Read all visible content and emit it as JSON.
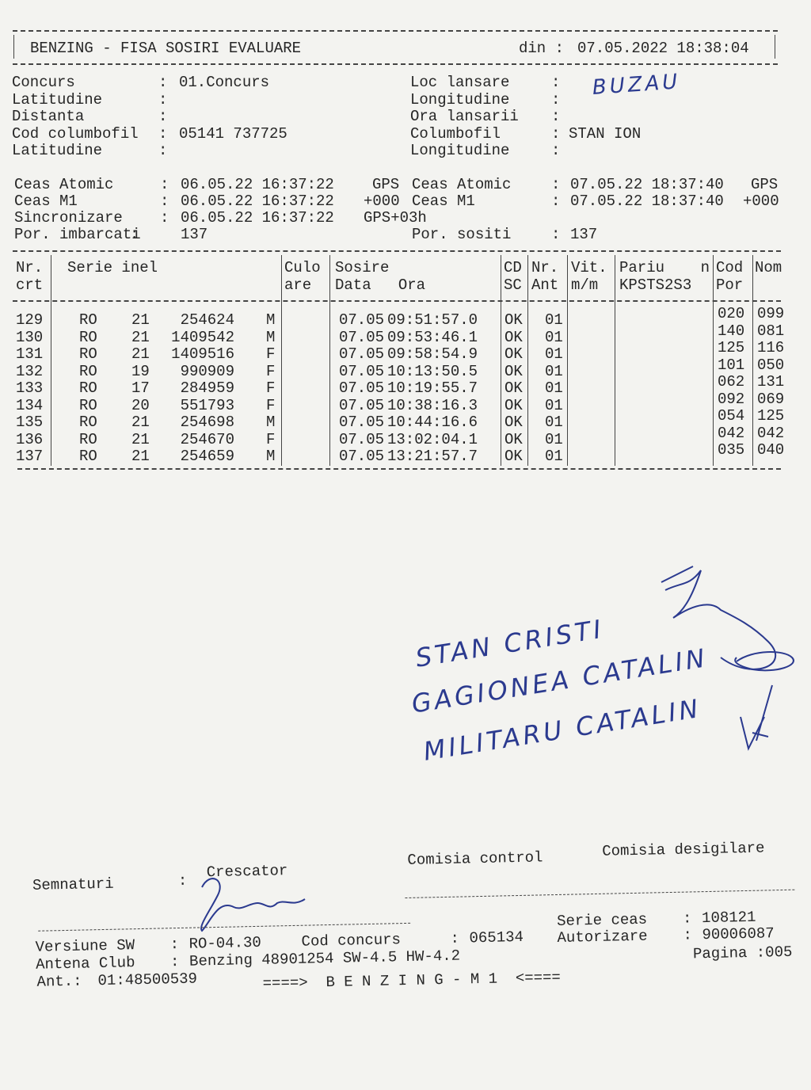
{
  "header": {
    "title": "BENZING - FISA SOSIRI EVALUARE",
    "date_label": "din :",
    "date": "07.05.2022 18:38:04"
  },
  "separator": ":",
  "info": {
    "left": [
      {
        "label": "Concurs",
        "value": "01.Concurs"
      },
      {
        "label": "Latitudine"
      },
      {
        "label": "Distanta"
      },
      {
        "label": "Cod columbofil",
        "value": "05141 737725"
      },
      {
        "label": "Latitudine"
      }
    ],
    "right": [
      {
        "label": "Loc lansare",
        "value": "BUZAU"
      },
      {
        "label": "Longitudine"
      },
      {
        "label": "Ora lansarii"
      },
      {
        "label": "Columbofil",
        "value": "STAN ION"
      },
      {
        "label": "Longitudine"
      }
    ]
  },
  "clocks": {
    "left": [
      {
        "label": "Ceas Atomic",
        "value": "06.05.22 16:37:22",
        "suffix": "GPS"
      },
      {
        "label": "Ceas M1",
        "value": "06.05.22 16:37:22",
        "suffix": "+000"
      },
      {
        "label": "Sincronizare",
        "value": "06.05.22 16:37:22",
        "suffix": "GPS+03h"
      },
      {
        "label": "Por. imbarcati",
        "value": "137"
      }
    ],
    "right": [
      {
        "label": "Ceas Atomic",
        "value": "07.05.22 18:37:40",
        "suffix": "GPS"
      },
      {
        "label": "Ceas M1",
        "value": "07.05.22 18:37:40",
        "suffix": "+000"
      },
      {
        "label": "Por. sositi",
        "value": "137"
      }
    ]
  },
  "table": {
    "columns": [
      [
        "Nr.",
        "crt"
      ],
      [
        "Serie inel"
      ],
      [
        "Culo",
        "are"
      ],
      [
        "Sosire",
        "Data   Ora"
      ],
      [
        "CD",
        "SC"
      ],
      [
        "Nr.",
        "Ant"
      ],
      [
        "Vit.",
        "m/m"
      ],
      [
        "Pariu    n",
        "KPSTS2S3"
      ],
      [
        "Cod",
        "Por"
      ],
      [
        "Nom"
      ]
    ],
    "rows": [
      [
        "129",
        "RO",
        "21",
        "254624",
        "M",
        "07.05",
        "09:51:57.0",
        "OK",
        "01",
        "020",
        "099"
      ],
      [
        "130",
        "RO",
        "21",
        "1409542",
        "M",
        "07.05",
        "09:53:46.1",
        "OK",
        "01",
        "140",
        "081"
      ],
      [
        "131",
        "RO",
        "21",
        "1409516",
        "F",
        "07.05",
        "09:58:54.9",
        "OK",
        "01",
        "125",
        "116"
      ],
      [
        "132",
        "RO",
        "19",
        "990909",
        "F",
        "07.05",
        "10:13:50.5",
        "OK",
        "01",
        "101",
        "050"
      ],
      [
        "133",
        "RO",
        "17",
        "284959",
        "F",
        "07.05",
        "10:19:55.7",
        "OK",
        "01",
        "062",
        "131"
      ],
      [
        "134",
        "RO",
        "20",
        "551793",
        "F",
        "07.05",
        "10:38:16.3",
        "OK",
        "01",
        "092",
        "069"
      ],
      [
        "135",
        "RO",
        "21",
        "254698",
        "M",
        "07.05",
        "10:44:16.6",
        "OK",
        "01",
        "054",
        "125"
      ],
      [
        "136",
        "RO",
        "21",
        "254670",
        "F",
        "07.05",
        "13:02:04.1",
        "OK",
        "01",
        "042",
        "042"
      ],
      [
        "137",
        "RO",
        "21",
        "254659",
        "M",
        "07.05",
        "13:21:57.7",
        "OK",
        "01",
        "035",
        "040"
      ]
    ]
  },
  "handwritten": [
    "STAN CRISTI",
    "GAGIONEA CATALIN",
    "MILITARU CATALIN"
  ],
  "signatures": {
    "label": "Semnaturi",
    "roles": [
      "Crescator",
      "Comisia control",
      "Comisia desigilare"
    ]
  },
  "footer": {
    "version": {
      "label": "Versiune SW",
      "value": "RO-04.30"
    },
    "contest": {
      "label": "Cod concurs",
      "value": "065134"
    },
    "clock_serial": {
      "label": "Serie ceas",
      "value": "108121"
    },
    "authorization": {
      "label": "Autorizare",
      "value": "90006087"
    },
    "antenna_club": {
      "label": "Antena Club",
      "value": "Benzing 48901254 SW-4.5 HW-4.2"
    },
    "antenna": {
      "label": "Ant.:",
      "value": "01:48500539"
    },
    "page": "Pagina :005",
    "banner": "====>  B E N Z I N G - M 1  <===="
  }
}
